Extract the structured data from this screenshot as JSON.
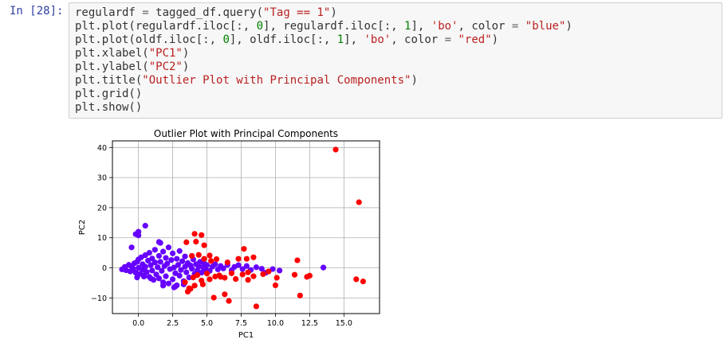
{
  "cell": {
    "prompt": "In [28]:",
    "code_lines": [
      [
        {
          "t": "regulardf "
        },
        {
          "t": "=",
          "c": "op"
        },
        {
          "t": " tagged_df.query("
        },
        {
          "t": "\"Tag == 1\"",
          "c": "str"
        },
        {
          "t": ")"
        }
      ],
      [
        {
          "t": "plt.plot(regulardf.iloc[:, "
        },
        {
          "t": "0",
          "c": "num"
        },
        {
          "t": "], regulardf.iloc[:, "
        },
        {
          "t": "1",
          "c": "num"
        },
        {
          "t": "], "
        },
        {
          "t": "'bo'",
          "c": "str"
        },
        {
          "t": ", color "
        },
        {
          "t": "=",
          "c": "op"
        },
        {
          "t": " "
        },
        {
          "t": "\"blue\"",
          "c": "str"
        },
        {
          "t": ")"
        }
      ],
      [
        {
          "t": "plt.plot(oldf.iloc[:, "
        },
        {
          "t": "0",
          "c": "num"
        },
        {
          "t": "], oldf.iloc[:, "
        },
        {
          "t": "1",
          "c": "num"
        },
        {
          "t": "], "
        },
        {
          "t": "'bo'",
          "c": "str"
        },
        {
          "t": ", color "
        },
        {
          "t": "=",
          "c": "op"
        },
        {
          "t": " "
        },
        {
          "t": "\"red\"",
          "c": "str"
        },
        {
          "t": ")"
        }
      ],
      [
        {
          "t": "plt.xlabel("
        },
        {
          "t": "\"PC1\"",
          "c": "str"
        },
        {
          "t": ")"
        }
      ],
      [
        {
          "t": "plt.ylabel("
        },
        {
          "t": "\"PC2\"",
          "c": "str"
        },
        {
          "t": ")"
        }
      ],
      [
        {
          "t": "plt.title("
        },
        {
          "t": "\"Outlier Plot with Principal Components\"",
          "c": "str"
        },
        {
          "t": ")"
        }
      ],
      [
        {
          "t": "plt.grid()"
        }
      ],
      [
        {
          "t": "plt.show()"
        }
      ]
    ]
  },
  "colors": {
    "regular": "#6600ff",
    "outlier": "#ff0000",
    "grid": "#b0b0b0"
  },
  "chart_data": {
    "type": "scatter",
    "title": "Outlier Plot with Principal Components",
    "xlabel": "PC1",
    "ylabel": "PC2",
    "xlim": [
      -1.9,
      17.6
    ],
    "ylim": [
      -15.2,
      42.2
    ],
    "xticks": [
      0.0,
      2.5,
      5.0,
      7.5,
      10.0,
      12.5,
      15.0
    ],
    "xtick_labels": [
      "0.0",
      "2.5",
      "5.0",
      "7.5",
      "10.0",
      "12.5",
      "15.0"
    ],
    "yticks": [
      -10,
      0,
      10,
      20,
      30,
      40
    ],
    "ytick_labels": [
      "−10",
      "0",
      "10",
      "20",
      "30",
      "40"
    ],
    "grid": true,
    "series": [
      {
        "role": "regular",
        "color": "#6600ff",
        "points": [
          [
            -1.2,
            -0.5
          ],
          [
            -1.0,
            0.3
          ],
          [
            -0.9,
            -0.8
          ],
          [
            -0.7,
            1.0
          ],
          [
            -0.6,
            -1.2
          ],
          [
            -0.5,
            0.5
          ],
          [
            -0.4,
            -0.3
          ],
          [
            -0.3,
            1.5
          ],
          [
            -0.2,
            -1.6
          ],
          [
            -0.1,
            2.0
          ],
          [
            0.0,
            0.0
          ],
          [
            0.0,
            2.8
          ],
          [
            0.1,
            -2.0
          ],
          [
            0.2,
            3.5
          ],
          [
            0.3,
            -0.6
          ],
          [
            0.3,
            1.2
          ],
          [
            0.4,
            -2.5
          ],
          [
            0.5,
            4.2
          ],
          [
            0.5,
            0.4
          ],
          [
            0.6,
            -1.4
          ],
          [
            0.7,
            2.4
          ],
          [
            0.8,
            -3.0
          ],
          [
            0.8,
            5.0
          ],
          [
            0.9,
            0.9
          ],
          [
            1.0,
            -0.9
          ],
          [
            1.0,
            3.1
          ],
          [
            1.1,
            -4.0
          ],
          [
            1.2,
            1.8
          ],
          [
            1.2,
            6.0
          ],
          [
            1.3,
            -2.2
          ],
          [
            1.4,
            0.2
          ],
          [
            1.5,
            4.0
          ],
          [
            1.5,
            -3.5
          ],
          [
            1.6,
            2.0
          ],
          [
            1.7,
            -1.0
          ],
          [
            1.8,
            5.4
          ],
          [
            1.8,
            -4.8
          ],
          [
            1.9,
            0.6
          ],
          [
            2.0,
            3.3
          ],
          [
            2.0,
            -2.8
          ],
          [
            2.1,
            1.4
          ],
          [
            2.2,
            -5.2
          ],
          [
            2.2,
            6.8
          ],
          [
            2.3,
            -0.4
          ],
          [
            2.4,
            2.6
          ],
          [
            2.5,
            -3.8
          ],
          [
            2.5,
            4.8
          ],
          [
            2.6,
            0.1
          ],
          [
            2.7,
            -1.8
          ],
          [
            2.8,
            3.0
          ],
          [
            2.8,
            -5.8
          ],
          [
            2.9,
            1.0
          ],
          [
            3.0,
            -2.6
          ],
          [
            3.0,
            5.6
          ],
          [
            3.1,
            -0.7
          ],
          [
            3.2,
            2.2
          ],
          [
            3.3,
            -4.4
          ],
          [
            3.4,
            3.8
          ],
          [
            3.4,
            0.4
          ],
          [
            3.5,
            -1.5
          ],
          [
            3.6,
            1.6
          ],
          [
            3.7,
            -3.2
          ],
          [
            3.8,
            0.8
          ],
          [
            3.9,
            -0.3
          ],
          [
            4.0,
            2.8
          ],
          [
            4.1,
            -2.0
          ],
          [
            4.2,
            1.2
          ],
          [
            4.3,
            -0.9
          ],
          [
            4.4,
            0.5
          ],
          [
            4.5,
            2.0
          ],
          [
            4.6,
            -1.6
          ],
          [
            4.7,
            0.2
          ],
          [
            4.8,
            1.4
          ],
          [
            4.9,
            -0.6
          ],
          [
            5.0,
            0.9
          ],
          [
            5.2,
            -1.0
          ],
          [
            5.4,
            0.4
          ],
          [
            5.6,
            1.2
          ],
          [
            5.8,
            -0.5
          ],
          [
            6.0,
            0.6
          ],
          [
            6.2,
            -0.2
          ],
          [
            6.5,
            1.0
          ],
          [
            6.8,
            -0.8
          ],
          [
            7.0,
            0.3
          ],
          [
            7.3,
            0.9
          ],
          [
            7.6,
            -0.4
          ],
          [
            7.9,
            0.6
          ],
          [
            8.2,
            -0.7
          ],
          [
            8.6,
            0.2
          ],
          [
            9.0,
            -0.3
          ],
          [
            9.3,
            -1.6
          ],
          [
            9.8,
            -0.4
          ],
          [
            10.3,
            -0.9
          ],
          [
            13.5,
            0.1
          ],
          [
            0.0,
            12.0
          ],
          [
            -0.2,
            11.2
          ],
          [
            0.5,
            14.0
          ],
          [
            0.0,
            10.8
          ],
          [
            1.5,
            8.6
          ],
          [
            1.6,
            8.3
          ],
          [
            -0.5,
            6.8
          ],
          [
            0.9,
            -3.5
          ],
          [
            1.8,
            -5.9
          ],
          [
            2.7,
            -6.2
          ],
          [
            3.3,
            -5.5
          ],
          [
            2.6,
            -6.5
          ],
          [
            -0.1,
            -3.2
          ],
          [
            0.4,
            -2.9
          ]
        ]
      },
      {
        "role": "outlier",
        "color": "#ff0000",
        "points": [
          [
            14.4,
            39.3
          ],
          [
            16.1,
            21.8
          ],
          [
            15.9,
            -3.8
          ],
          [
            16.4,
            -4.5
          ],
          [
            11.8,
            -9.2
          ],
          [
            11.6,
            2.5
          ],
          [
            12.3,
            -3.0
          ],
          [
            12.5,
            -2.6
          ],
          [
            11.4,
            -2.3
          ],
          [
            10.1,
            -3.3
          ],
          [
            10.0,
            -5.8
          ],
          [
            8.6,
            -12.8
          ],
          [
            8.4,
            3.5
          ],
          [
            7.7,
            6.3
          ],
          [
            7.9,
            3.0
          ],
          [
            7.3,
            3.0
          ],
          [
            6.6,
            -11.0
          ],
          [
            6.3,
            -8.8
          ],
          [
            5.5,
            -9.9
          ],
          [
            5.7,
            2.9
          ],
          [
            4.8,
            3.0
          ],
          [
            4.6,
            10.9
          ],
          [
            4.1,
            11.3
          ],
          [
            4.8,
            7.5
          ],
          [
            4.7,
            -5.5
          ],
          [
            4.1,
            -5.9
          ],
          [
            3.6,
            -7.9
          ],
          [
            3.8,
            -7.0
          ],
          [
            3.5,
            8.5
          ],
          [
            4.2,
            8.7
          ],
          [
            4.4,
            4.3
          ],
          [
            3.9,
            4.0
          ],
          [
            5.2,
            4.1
          ],
          [
            5.9,
            -2.5
          ],
          [
            6.3,
            -3.3
          ],
          [
            6.8,
            -1.8
          ],
          [
            7.1,
            -3.7
          ],
          [
            7.6,
            -2.2
          ],
          [
            8.0,
            -1.5
          ],
          [
            8.4,
            -2.8
          ],
          [
            9.1,
            -2.1
          ],
          [
            9.5,
            -1.2
          ],
          [
            5.2,
            -3.8
          ],
          [
            5.6,
            -2.9
          ],
          [
            4.3,
            -2.4
          ],
          [
            3.7,
            -6.8
          ],
          [
            4.6,
            -4.2
          ],
          [
            6.0,
            -3.0
          ],
          [
            4.0,
            -3.2
          ],
          [
            5.0,
            -1.9
          ],
          [
            6.5,
            1.8
          ],
          [
            5.3,
            2.3
          ],
          [
            8.0,
            -4.0
          ],
          [
            3.4,
            -4.8
          ]
        ]
      }
    ]
  }
}
